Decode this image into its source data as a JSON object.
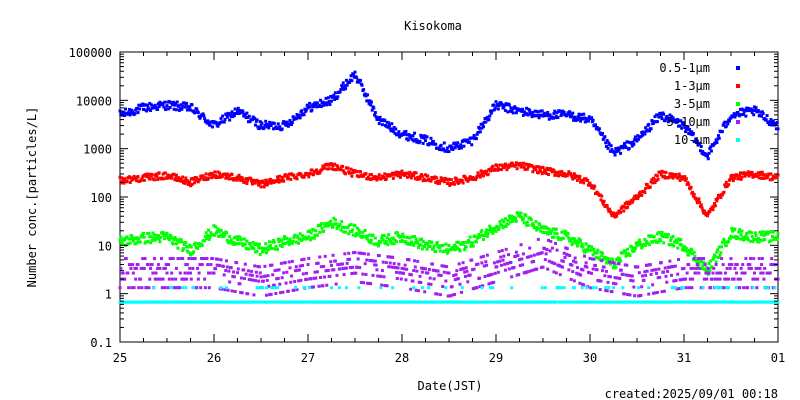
{
  "chart_data": {
    "type": "scatter",
    "title": "Kisokoma",
    "xlabel": "Date(JST)",
    "ylabel": "Number conc.[particles/L]",
    "y_scale": "log",
    "ylim": [
      0.1,
      100000
    ],
    "y_ticks": [
      "100000",
      "10000",
      "1000",
      "100",
      "10",
      "1",
      "0.1"
    ],
    "x_ticks": [
      "25",
      "26",
      "27",
      "28",
      "29",
      "30",
      "31",
      "01"
    ],
    "xlim": [
      "2025-08-25",
      "2025-09-01"
    ],
    "footer": "created:2025/09/01 00:18",
    "legend_position": "top-right",
    "grid": false,
    "series": [
      {
        "name": "0.5-1μm",
        "color": "#0000ff",
        "points": [
          [
            "2025-08-25 00:00",
            5000
          ],
          [
            "2025-08-25 06:00",
            7000
          ],
          [
            "2025-08-25 12:00",
            8000
          ],
          [
            "2025-08-25 18:00",
            7000
          ],
          [
            "2025-08-26 00:00",
            3000
          ],
          [
            "2025-08-26 06:00",
            6000
          ],
          [
            "2025-08-26 12:00",
            3000
          ],
          [
            "2025-08-26 18:00",
            3000
          ],
          [
            "2025-08-27 00:00",
            7000
          ],
          [
            "2025-08-27 06:00",
            10000
          ],
          [
            "2025-08-27 12:00",
            35000
          ],
          [
            "2025-08-27 18:00",
            4000
          ],
          [
            "2025-08-28 00:00",
            2000
          ],
          [
            "2025-08-28 06:00",
            1500
          ],
          [
            "2025-08-28 12:00",
            1000
          ],
          [
            "2025-08-28 18:00",
            1500
          ],
          [
            "2025-08-29 00:00",
            8000
          ],
          [
            "2025-08-29 06:00",
            6000
          ],
          [
            "2025-08-29 12:00",
            5000
          ],
          [
            "2025-08-29 18:00",
            5000
          ],
          [
            "2025-08-30 00:00",
            4000
          ],
          [
            "2025-08-30 06:00",
            800
          ],
          [
            "2025-08-30 12:00",
            1500
          ],
          [
            "2025-08-30 18:00",
            5000
          ],
          [
            "2025-08-31 00:00",
            3000
          ],
          [
            "2025-08-31 06:00",
            700
          ],
          [
            "2025-08-31 12:00",
            5000
          ],
          [
            "2025-08-31 18:00",
            6000
          ],
          [
            "2025-09-01 00:00",
            3000
          ]
        ]
      },
      {
        "name": "1-3μm",
        "color": "#ff0000",
        "points": [
          [
            "2025-08-25 00:00",
            220
          ],
          [
            "2025-08-25 06:00",
            250
          ],
          [
            "2025-08-25 12:00",
            280
          ],
          [
            "2025-08-25 18:00",
            200
          ],
          [
            "2025-08-26 00:00",
            300
          ],
          [
            "2025-08-26 06:00",
            250
          ],
          [
            "2025-08-26 12:00",
            180
          ],
          [
            "2025-08-26 18:00",
            250
          ],
          [
            "2025-08-27 00:00",
            300
          ],
          [
            "2025-08-27 06:00",
            450
          ],
          [
            "2025-08-27 12:00",
            300
          ],
          [
            "2025-08-27 18:00",
            250
          ],
          [
            "2025-08-28 00:00",
            300
          ],
          [
            "2025-08-28 06:00",
            250
          ],
          [
            "2025-08-28 12:00",
            200
          ],
          [
            "2025-08-28 18:00",
            250
          ],
          [
            "2025-08-29 00:00",
            400
          ],
          [
            "2025-08-29 06:00",
            450
          ],
          [
            "2025-08-29 12:00",
            350
          ],
          [
            "2025-08-29 18:00",
            300
          ],
          [
            "2025-08-30 00:00",
            200
          ],
          [
            "2025-08-30 06:00",
            40
          ],
          [
            "2025-08-30 12:00",
            100
          ],
          [
            "2025-08-30 18:00",
            300
          ],
          [
            "2025-08-31 00:00",
            250
          ],
          [
            "2025-08-31 06:00",
            40
          ],
          [
            "2025-08-31 12:00",
            250
          ],
          [
            "2025-08-31 18:00",
            300
          ],
          [
            "2025-09-01 00:00",
            250
          ]
        ]
      },
      {
        "name": "3-5μm",
        "color": "#00ff00",
        "points": [
          [
            "2025-08-25 00:00",
            12
          ],
          [
            "2025-08-25 06:00",
            14
          ],
          [
            "2025-08-25 12:00",
            15
          ],
          [
            "2025-08-25 18:00",
            8
          ],
          [
            "2025-08-26 00:00",
            20
          ],
          [
            "2025-08-26 06:00",
            12
          ],
          [
            "2025-08-26 12:00",
            8
          ],
          [
            "2025-08-26 18:00",
            12
          ],
          [
            "2025-08-27 00:00",
            15
          ],
          [
            "2025-08-27 06:00",
            30
          ],
          [
            "2025-08-27 12:00",
            20
          ],
          [
            "2025-08-27 18:00",
            12
          ],
          [
            "2025-08-28 00:00",
            15
          ],
          [
            "2025-08-28 06:00",
            10
          ],
          [
            "2025-08-28 12:00",
            8
          ],
          [
            "2025-08-28 18:00",
            12
          ],
          [
            "2025-08-29 00:00",
            25
          ],
          [
            "2025-08-29 06:00",
            40
          ],
          [
            "2025-08-29 12:00",
            20
          ],
          [
            "2025-08-29 18:00",
            15
          ],
          [
            "2025-08-30 00:00",
            8
          ],
          [
            "2025-08-30 06:00",
            4
          ],
          [
            "2025-08-30 12:00",
            10
          ],
          [
            "2025-08-30 18:00",
            15
          ],
          [
            "2025-08-31 00:00",
            10
          ],
          [
            "2025-08-31 06:00",
            3
          ],
          [
            "2025-08-31 12:00",
            18
          ],
          [
            "2025-08-31 18:00",
            15
          ],
          [
            "2025-09-01 00:00",
            15
          ]
        ]
      },
      {
        "name": "5-10μm",
        "color": "#a020f0",
        "points": [
          [
            "2025-08-25 00:00",
            3
          ],
          [
            "2025-08-25 12:00",
            3
          ],
          [
            "2025-08-26 00:00",
            3
          ],
          [
            "2025-08-26 12:00",
            2
          ],
          [
            "2025-08-27 00:00",
            3
          ],
          [
            "2025-08-27 12:00",
            4
          ],
          [
            "2025-08-28 00:00",
            3
          ],
          [
            "2025-08-28 12:00",
            2
          ],
          [
            "2025-08-29 00:00",
            4
          ],
          [
            "2025-08-29 12:00",
            8
          ],
          [
            "2025-08-30 00:00",
            3
          ],
          [
            "2025-08-30 12:00",
            2
          ],
          [
            "2025-08-31 00:00",
            3
          ],
          [
            "2025-08-31 12:00",
            3
          ],
          [
            "2025-09-01 00:00",
            3
          ]
        ]
      },
      {
        "name": "10-μm",
        "color": "#00ffff",
        "points": [
          [
            "2025-08-25 00:00",
            0.67
          ],
          [
            "2025-08-26 00:00",
            0.67
          ],
          [
            "2025-08-27 00:00",
            0.67
          ],
          [
            "2025-08-28 00:00",
            0.67
          ],
          [
            "2025-08-29 00:00",
            0.67
          ],
          [
            "2025-08-30 00:00",
            0.67
          ],
          [
            "2025-08-31 00:00",
            0.67
          ],
          [
            "2025-09-01 00:00",
            0.67
          ]
        ]
      }
    ]
  }
}
